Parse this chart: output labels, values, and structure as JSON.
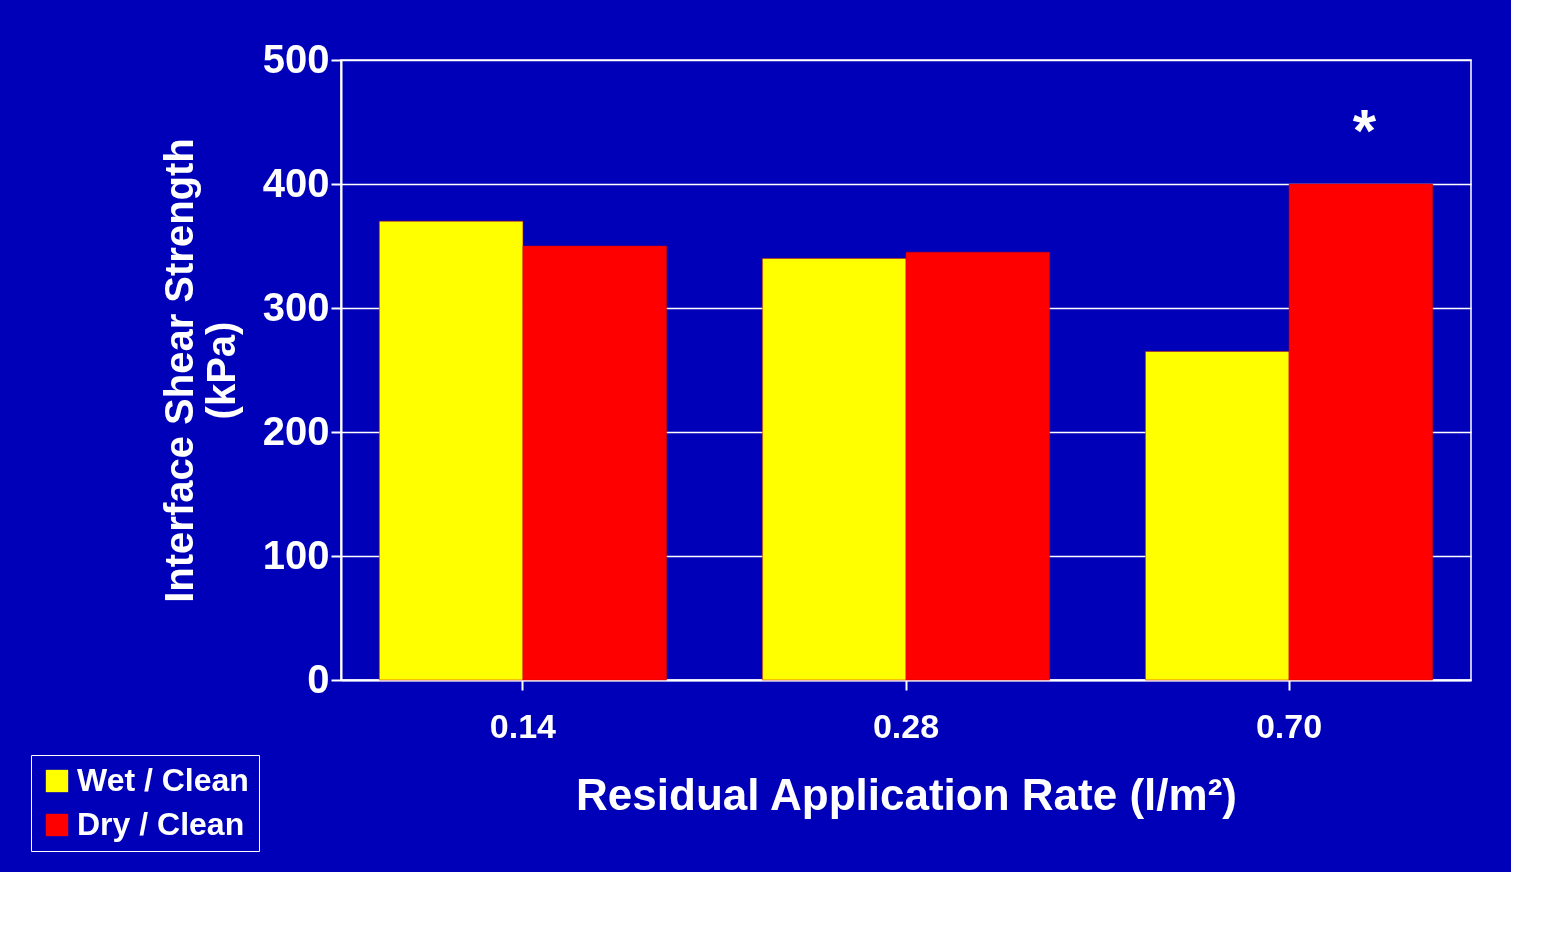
{
  "chart_data": {
    "type": "bar",
    "xlabel": "Residual Application Rate (l/m²)",
    "ylabel": "Interface Shear Strength (kPa)",
    "categories": [
      "0.14",
      "0.28",
      "0.70"
    ],
    "series": [
      {
        "name": "Wet / Clean",
        "color": "#ffff00",
        "values": [
          370,
          340,
          265
        ]
      },
      {
        "name": "Dry / Clean",
        "color": "#ff0000",
        "values": [
          350,
          345,
          400
        ]
      }
    ],
    "ylim": [
      0,
      500
    ],
    "yticks": [
      0,
      100,
      200,
      300,
      400,
      500
    ],
    "grid": "y",
    "legend": "bottom left",
    "annotations": [
      {
        "text": "*",
        "x": "0.70",
        "y": 400
      }
    ]
  }
}
